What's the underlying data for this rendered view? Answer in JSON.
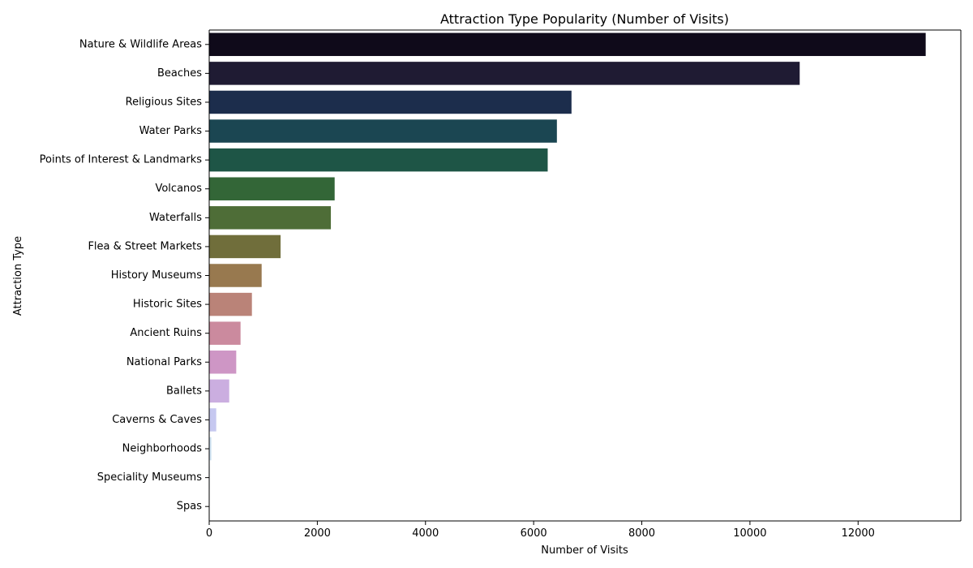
{
  "chart_data": {
    "type": "bar",
    "orientation": "horizontal",
    "title": "Attraction Type Popularity (Number of Visits)",
    "xlabel": "Number of Visits",
    "ylabel": "Attraction Type",
    "xlim": [
      0,
      13900
    ],
    "xticks": [
      0,
      2000,
      4000,
      6000,
      8000,
      10000,
      12000
    ],
    "grid": false,
    "categories": [
      "Nature & Wildlife Areas",
      "Beaches",
      "Religious Sites",
      "Water Parks",
      "Points of Interest & Landmarks",
      "Volcanos",
      "Waterfalls",
      "Flea & Street Markets",
      "History Museums",
      "Historic Sites",
      "Ancient Ruins",
      "National Parks",
      "Ballets",
      "Caverns & Caves",
      "Neighborhoods",
      "Speciality Museums",
      "Spas"
    ],
    "values": [
      13250,
      10920,
      6700,
      6430,
      6260,
      2320,
      2250,
      1320,
      970,
      790,
      580,
      500,
      370,
      130,
      40,
      10,
      5
    ],
    "colors": [
      "#0f0a1a",
      "#1f1b33",
      "#1c2d4c",
      "#1b4652",
      "#1e5546",
      "#336637",
      "#4e6d37",
      "#706e3b",
      "#98794f",
      "#ba8378",
      "#cb8a9e",
      "#ce96c5",
      "#cbaee0",
      "#c6c8f0",
      "#cfe2f2",
      "#e2eef6",
      "#f1f7fb"
    ]
  }
}
